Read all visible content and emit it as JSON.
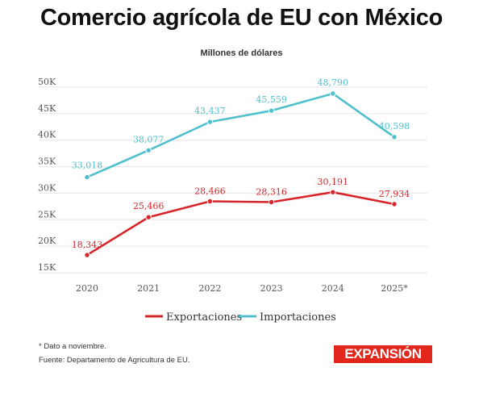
{
  "title": "Comercio agrícola de EU con México",
  "subtitle": "Millones de dólares",
  "chart_data": {
    "type": "line",
    "categories": [
      "2020",
      "2021",
      "2022",
      "2023",
      "2024",
      "2025*"
    ],
    "series": [
      {
        "name": "Exportaciones",
        "color": "#d7262a",
        "values": [
          18343,
          25466,
          28466,
          28316,
          30191,
          27934
        ],
        "labels": [
          "18,343",
          "25,466",
          "28,466",
          "28,316",
          "30,191",
          "27,934"
        ]
      },
      {
        "name": "Importaciones",
        "color": "#4fc0cc",
        "values": [
          33018,
          38077,
          43437,
          45559,
          48790,
          40598
        ],
        "labels": [
          "33,018",
          "38,077",
          "43,437",
          "45,559",
          "48,790",
          "40,598"
        ]
      }
    ],
    "yticks": [
      15000,
      20000,
      25000,
      30000,
      35000,
      40000,
      45000,
      50000
    ],
    "ytick_labels": [
      "15K",
      "20K",
      "25K",
      "30K",
      "35K",
      "40K",
      "45K",
      "50K"
    ],
    "ylim": [
      15000,
      50000
    ],
    "grid": true,
    "legend": "bottom-center"
  },
  "footnotes": {
    "note": "* Dato a noviembre.",
    "source": "Fuente: Departamento de Agricultura de EU."
  },
  "brand": "EXPANSIÓN"
}
